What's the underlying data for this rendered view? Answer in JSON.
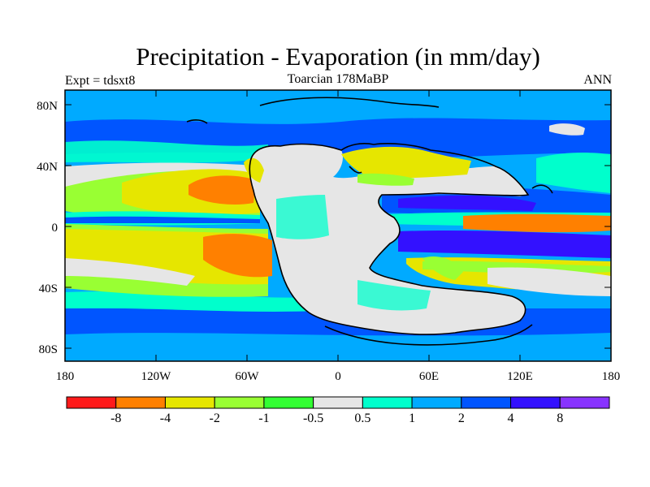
{
  "header": {
    "title": "Precipitation - Evaporation (in mm/day)",
    "left_label": "Expt = tdsxt8",
    "center_label": "Toarcian 178MaBP",
    "right_label": "ANN"
  },
  "map": {
    "lat_ticks": [
      "80N",
      "40N",
      "0",
      "40S",
      "80S"
    ],
    "lon_ticks": [
      "180",
      "120W",
      "60W",
      "0",
      "60E",
      "120E",
      "180"
    ]
  },
  "colorbar": {
    "colors": [
      "#ff1a1a",
      "#ff8000",
      "#e6e600",
      "#99ff33",
      "#33ff33",
      "#e6e6e6",
      "#00ffcc",
      "#00aaff",
      "#0055ff",
      "#3311ff",
      "#8833ff"
    ],
    "labels": [
      "-8",
      "-4",
      "-2",
      "-1",
      "-0.5",
      "0.5",
      "1",
      "2",
      "4",
      "8"
    ]
  },
  "palette": {
    "orange": "#ff8000",
    "yellow": "#e6e600",
    "lightgreen": "#99ff33",
    "green": "#33ff33",
    "gray": "#e6e6e6",
    "cyan": "#00ffcc",
    "lightblue": "#00aaff",
    "blue": "#0055ff",
    "darkblue": "#3311ff"
  }
}
